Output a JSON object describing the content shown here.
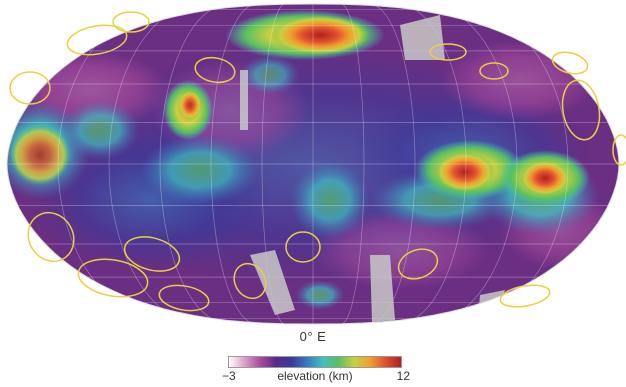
{
  "map": {
    "central_meridian_label": "0° E",
    "colormap": [
      "#ffffff",
      "#d9a0c8",
      "#a94a9c",
      "#5a2a8a",
      "#3a3a9a",
      "#3a7ac0",
      "#3fc0c0",
      "#58c060",
      "#c8d040",
      "#f0a030",
      "#e05030",
      "#b02020"
    ],
    "ellipse_color": "#e8d040"
  },
  "legend": {
    "title": "elevation (km)",
    "min_label": "−3",
    "max_label": "12",
    "min": -3,
    "max": 12
  }
}
